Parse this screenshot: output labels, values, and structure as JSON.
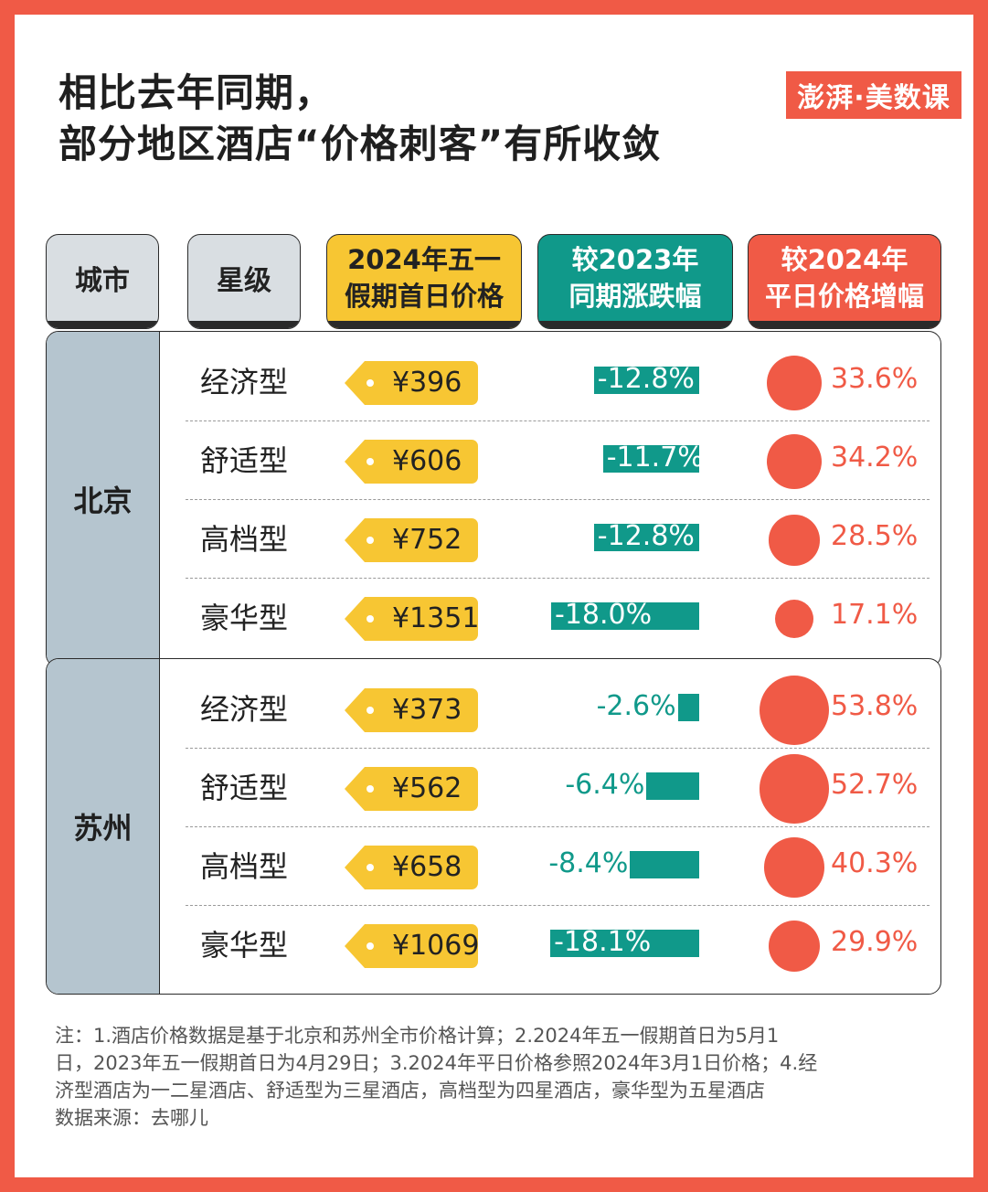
{
  "title": {
    "line1": "相比去年同期，",
    "line2": "部分地区酒店“价格刺客”有所收敛"
  },
  "logo": {
    "text": "澎湃·美数课"
  },
  "colors": {
    "frame": "#F05A46",
    "price": "#F7C633",
    "yoy": "#10998A",
    "weekday": "#F05A46",
    "city": "#B5C5CF"
  },
  "headers": {
    "city": "城市",
    "star": "星级",
    "price_l1": "2024年五一",
    "price_l2": "假期首日价格",
    "yoy_l1": "较2023年",
    "yoy_l2": "同期涨跌幅",
    "wk_l1": "较2024年",
    "wk_l2": "平日价格增幅"
  },
  "chart_data": {
    "type": "table",
    "columns": [
      "城市",
      "星级",
      "2024年五一假期首日价格",
      "较2023年同期涨跌幅",
      "较2024年平日价格增幅"
    ],
    "groups": [
      {
        "city": "北京",
        "rows": [
          {
            "star": "经济型",
            "price": "¥396",
            "yoy": -12.8,
            "yoy_label": "-12.8%",
            "weekday": 33.6,
            "weekday_label": "33.6%"
          },
          {
            "star": "舒适型",
            "price": "¥606",
            "yoy": -11.7,
            "yoy_label": "-11.7%",
            "weekday": 34.2,
            "weekday_label": "34.2%"
          },
          {
            "star": "高档型",
            "price": "¥752",
            "yoy": -12.8,
            "yoy_label": "-12.8%",
            "weekday": 28.5,
            "weekday_label": "28.5%"
          },
          {
            "star": "豪华型",
            "price": "¥1351",
            "yoy": -18.0,
            "yoy_label": "-18.0%",
            "weekday": 17.1,
            "weekday_label": "17.1%"
          }
        ]
      },
      {
        "city": "苏州",
        "rows": [
          {
            "star": "经济型",
            "price": "¥373",
            "yoy": -2.6,
            "yoy_label": "-2.6%",
            "weekday": 53.8,
            "weekday_label": "53.8%"
          },
          {
            "star": "舒适型",
            "price": "¥562",
            "yoy": -6.4,
            "yoy_label": "-6.4%",
            "weekday": 52.7,
            "weekday_label": "52.7%"
          },
          {
            "star": "高档型",
            "price": "¥658",
            "yoy": -8.4,
            "yoy_label": "-8.4%",
            "weekday": 40.3,
            "weekday_label": "40.3%"
          },
          {
            "star": "豪华型",
            "price": "¥1069",
            "yoy": -18.1,
            "yoy_label": "-18.1%",
            "weekday": 29.9,
            "weekday_label": "29.9%"
          }
        ]
      }
    ]
  },
  "notes": {
    "line1": "注：1.酒店价格数据是基于北京和苏州全市价格计算；2.2024年五一假期首日为5月1",
    "line2": "日，2023年五一假期首日为4月29日；3.2024年平日价格参照2024年3月1日价格；4.经",
    "line3": "济型酒店为一二星酒店、舒适型为三星酒店，高档型为四星酒店，豪华型为五星酒店",
    "line4": "数据来源：去哪儿"
  }
}
